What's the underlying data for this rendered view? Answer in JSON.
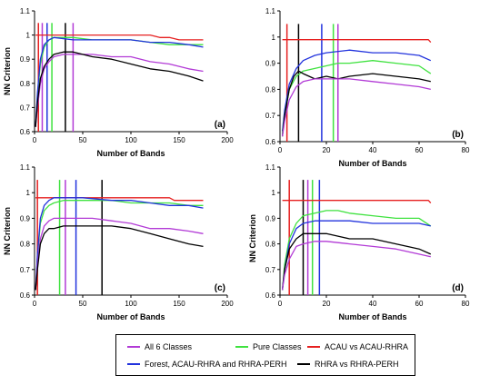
{
  "legend": [
    {
      "key": "all6",
      "label": "All 6 Classes",
      "color": "#b23ad6"
    },
    {
      "key": "pure",
      "label": "Pure Classes",
      "color": "#3fe23f"
    },
    {
      "key": "acau",
      "label": "ACAU vs ACAU-RHRA",
      "color": "#e62020"
    },
    {
      "key": "forest",
      "label": "Forest, ACAU-RHRA and RHRA-PERH",
      "color": "#2233dd"
    },
    {
      "key": "rhra",
      "label": "RHRA vs RHRA-PERH",
      "color": "#000000"
    }
  ],
  "chart_data": [
    {
      "type": "line",
      "panel": "(a)",
      "xlabel": "Number of Bands",
      "ylabel": "NN Criterion",
      "xlim": [
        0,
        200
      ],
      "ylim": [
        0.6,
        1.1
      ],
      "xticks": [
        0,
        50,
        100,
        150,
        200
      ],
      "yticks": [
        0.6,
        0.7,
        0.8,
        0.9,
        1.0,
        1.1
      ],
      "series": [
        {
          "key": "acau",
          "x": [
            1,
            2,
            3,
            5,
            10,
            20,
            40,
            60,
            80,
            100,
            110,
            120,
            130,
            140,
            150,
            160,
            175
          ],
          "values": [
            1.0,
            1.0,
            1.0,
            1.0,
            1.0,
            1.0,
            1.0,
            1.0,
            1.0,
            1.0,
            1.0,
            1.0,
            0.99,
            0.99,
            0.98,
            0.98,
            0.98
          ]
        },
        {
          "key": "pure",
          "x": [
            1,
            3,
            6,
            10,
            15,
            20,
            40,
            60,
            80,
            100,
            120,
            140,
            160,
            175
          ],
          "values": [
            0.62,
            0.75,
            0.88,
            0.95,
            0.98,
            0.99,
            0.99,
            0.98,
            0.98,
            0.98,
            0.97,
            0.96,
            0.96,
            0.96
          ]
        },
        {
          "key": "forest",
          "x": [
            1,
            3,
            6,
            10,
            15,
            20,
            40,
            60,
            80,
            100,
            120,
            140,
            160,
            175
          ],
          "values": [
            0.62,
            0.76,
            0.9,
            0.96,
            0.98,
            0.99,
            0.98,
            0.98,
            0.98,
            0.98,
            0.97,
            0.97,
            0.96,
            0.95
          ]
        },
        {
          "key": "all6",
          "x": [
            1,
            3,
            6,
            10,
            15,
            20,
            30,
            40,
            60,
            80,
            100,
            120,
            140,
            160,
            175
          ],
          "values": [
            0.62,
            0.7,
            0.8,
            0.86,
            0.89,
            0.91,
            0.92,
            0.92,
            0.92,
            0.91,
            0.91,
            0.89,
            0.88,
            0.86,
            0.85
          ]
        },
        {
          "key": "rhra",
          "x": [
            1,
            3,
            6,
            10,
            15,
            20,
            30,
            40,
            60,
            80,
            100,
            120,
            140,
            160,
            175
          ],
          "values": [
            0.62,
            0.72,
            0.82,
            0.87,
            0.9,
            0.92,
            0.93,
            0.93,
            0.91,
            0.9,
            0.88,
            0.86,
            0.85,
            0.83,
            0.81
          ]
        }
      ],
      "markers": [
        {
          "key": "acau",
          "x": 4
        },
        {
          "key": "all6",
          "x": 8
        },
        {
          "key": "forest",
          "x": 13
        },
        {
          "key": "pure",
          "x": 18
        },
        {
          "key": "rhra",
          "x": 32
        },
        {
          "key": "all6",
          "x": 40
        }
      ]
    },
    {
      "type": "line",
      "panel": "(b)",
      "xlabel": "Number of Bands",
      "ylabel": "",
      "xlim": [
        0,
        80
      ],
      "ylim": [
        0.6,
        1.1
      ],
      "xticks": [
        0,
        20,
        40,
        60,
        80
      ],
      "yticks": [
        0.6,
        0.7,
        0.8,
        0.9,
        1.0,
        1.1
      ],
      "series": [
        {
          "key": "acau",
          "x": [
            1,
            2,
            5,
            10,
            20,
            30,
            40,
            50,
            60,
            64,
            65
          ],
          "values": [
            0.99,
            0.99,
            0.99,
            0.99,
            0.99,
            0.99,
            0.99,
            0.99,
            0.99,
            0.99,
            0.98
          ]
        },
        {
          "key": "forest",
          "x": [
            1,
            2,
            4,
            7,
            10,
            15,
            20,
            30,
            40,
            50,
            60,
            65
          ],
          "values": [
            0.64,
            0.72,
            0.82,
            0.88,
            0.91,
            0.93,
            0.94,
            0.95,
            0.94,
            0.94,
            0.93,
            0.91
          ]
        },
        {
          "key": "pure",
          "x": [
            1,
            2,
            4,
            7,
            10,
            15,
            20,
            25,
            30,
            40,
            50,
            60,
            65
          ],
          "values": [
            0.63,
            0.7,
            0.8,
            0.85,
            0.87,
            0.88,
            0.89,
            0.9,
            0.9,
            0.91,
            0.9,
            0.89,
            0.86
          ]
        },
        {
          "key": "rhra",
          "x": [
            1,
            2,
            4,
            6,
            8,
            10,
            15,
            20,
            25,
            30,
            40,
            50,
            60,
            65
          ],
          "values": [
            0.62,
            0.7,
            0.8,
            0.85,
            0.87,
            0.86,
            0.84,
            0.85,
            0.84,
            0.85,
            0.86,
            0.85,
            0.84,
            0.83
          ]
        },
        {
          "key": "all6",
          "x": [
            1,
            2,
            4,
            7,
            10,
            15,
            20,
            30,
            40,
            50,
            60,
            65
          ],
          "values": [
            0.62,
            0.68,
            0.76,
            0.81,
            0.83,
            0.84,
            0.84,
            0.84,
            0.83,
            0.82,
            0.81,
            0.8
          ]
        }
      ],
      "markers": [
        {
          "key": "acau",
          "x": 3
        },
        {
          "key": "rhra",
          "x": 8
        },
        {
          "key": "forest",
          "x": 18
        },
        {
          "key": "pure",
          "x": 23
        },
        {
          "key": "all6",
          "x": 25
        }
      ]
    },
    {
      "type": "line",
      "panel": "(c)",
      "xlabel": "Number of Bands",
      "ylabel": "NN Criterion",
      "xlim": [
        0,
        200
      ],
      "ylim": [
        0.6,
        1.1
      ],
      "xticks": [
        0,
        50,
        100,
        150,
        200
      ],
      "yticks": [
        0.6,
        0.7,
        0.8,
        0.9,
        1.0,
        1.1
      ],
      "series": [
        {
          "key": "acau",
          "x": [
            1,
            5,
            20,
            50,
            80,
            100,
            130,
            140,
            145,
            150,
            160,
            175
          ],
          "values": [
            0.98,
            0.98,
            0.98,
            0.98,
            0.98,
            0.98,
            0.98,
            0.98,
            0.97,
            0.97,
            0.97,
            0.97
          ]
        },
        {
          "key": "pure",
          "x": [
            1,
            3,
            6,
            10,
            15,
            20,
            30,
            50,
            80,
            100,
            120,
            140,
            160,
            175
          ],
          "values": [
            0.62,
            0.75,
            0.88,
            0.93,
            0.95,
            0.96,
            0.97,
            0.97,
            0.97,
            0.96,
            0.96,
            0.96,
            0.95,
            0.95
          ]
        },
        {
          "key": "forest",
          "x": [
            1,
            3,
            6,
            10,
            15,
            20,
            30,
            50,
            80,
            100,
            120,
            140,
            160,
            175
          ],
          "values": [
            0.62,
            0.76,
            0.9,
            0.95,
            0.97,
            0.98,
            0.98,
            0.98,
            0.97,
            0.97,
            0.96,
            0.95,
            0.95,
            0.94
          ]
        },
        {
          "key": "all6",
          "x": [
            1,
            3,
            6,
            10,
            15,
            20,
            30,
            40,
            60,
            80,
            100,
            120,
            140,
            160,
            175
          ],
          "values": [
            0.62,
            0.72,
            0.82,
            0.87,
            0.89,
            0.9,
            0.9,
            0.9,
            0.9,
            0.89,
            0.88,
            0.86,
            0.86,
            0.85,
            0.84
          ]
        },
        {
          "key": "rhra",
          "x": [
            1,
            3,
            6,
            10,
            15,
            20,
            30,
            40,
            60,
            80,
            100,
            120,
            140,
            160,
            175
          ],
          "values": [
            0.62,
            0.7,
            0.8,
            0.84,
            0.86,
            0.86,
            0.87,
            0.87,
            0.87,
            0.87,
            0.86,
            0.84,
            0.82,
            0.8,
            0.79
          ]
        }
      ],
      "markers": [
        {
          "key": "acau",
          "x": 3
        },
        {
          "key": "pure",
          "x": 26
        },
        {
          "key": "all6",
          "x": 32
        },
        {
          "key": "forest",
          "x": 43
        },
        {
          "key": "rhra",
          "x": 70
        }
      ]
    },
    {
      "type": "line",
      "panel": "(d)",
      "xlabel": "Number of Bands",
      "ylabel": "NN Criterion",
      "xlim": [
        0,
        80
      ],
      "ylim": [
        0.6,
        1.1
      ],
      "xticks": [
        0,
        20,
        40,
        60,
        80
      ],
      "yticks": [
        0.6,
        0.7,
        0.8,
        0.9,
        1.0,
        1.1
      ],
      "series": [
        {
          "key": "acau",
          "x": [
            1,
            2,
            5,
            10,
            20,
            30,
            40,
            50,
            60,
            64,
            65
          ],
          "values": [
            0.97,
            0.97,
            0.97,
            0.97,
            0.97,
            0.97,
            0.97,
            0.97,
            0.97,
            0.97,
            0.96
          ]
        },
        {
          "key": "pure",
          "x": [
            1,
            2,
            4,
            7,
            10,
            15,
            20,
            25,
            30,
            40,
            50,
            60,
            65
          ],
          "values": [
            0.62,
            0.72,
            0.82,
            0.88,
            0.91,
            0.92,
            0.93,
            0.93,
            0.92,
            0.91,
            0.9,
            0.9,
            0.87
          ]
        },
        {
          "key": "forest",
          "x": [
            1,
            2,
            4,
            7,
            10,
            15,
            20,
            30,
            40,
            50,
            60,
            65
          ],
          "values": [
            0.62,
            0.7,
            0.8,
            0.86,
            0.88,
            0.89,
            0.89,
            0.89,
            0.88,
            0.88,
            0.88,
            0.87
          ]
        },
        {
          "key": "rhra",
          "x": [
            1,
            2,
            4,
            7,
            10,
            15,
            20,
            25,
            30,
            40,
            50,
            60,
            65
          ],
          "values": [
            0.62,
            0.7,
            0.78,
            0.82,
            0.84,
            0.84,
            0.84,
            0.83,
            0.82,
            0.82,
            0.8,
            0.78,
            0.76
          ]
        },
        {
          "key": "all6",
          "x": [
            1,
            2,
            4,
            7,
            10,
            15,
            20,
            30,
            40,
            50,
            60,
            65
          ],
          "values": [
            0.62,
            0.68,
            0.74,
            0.79,
            0.8,
            0.81,
            0.81,
            0.8,
            0.79,
            0.78,
            0.76,
            0.75
          ]
        }
      ],
      "markers": [
        {
          "key": "acau",
          "x": 4
        },
        {
          "key": "rhra",
          "x": 10
        },
        {
          "key": "all6",
          "x": 12
        },
        {
          "key": "pure",
          "x": 14
        },
        {
          "key": "forest",
          "x": 17
        }
      ]
    }
  ]
}
